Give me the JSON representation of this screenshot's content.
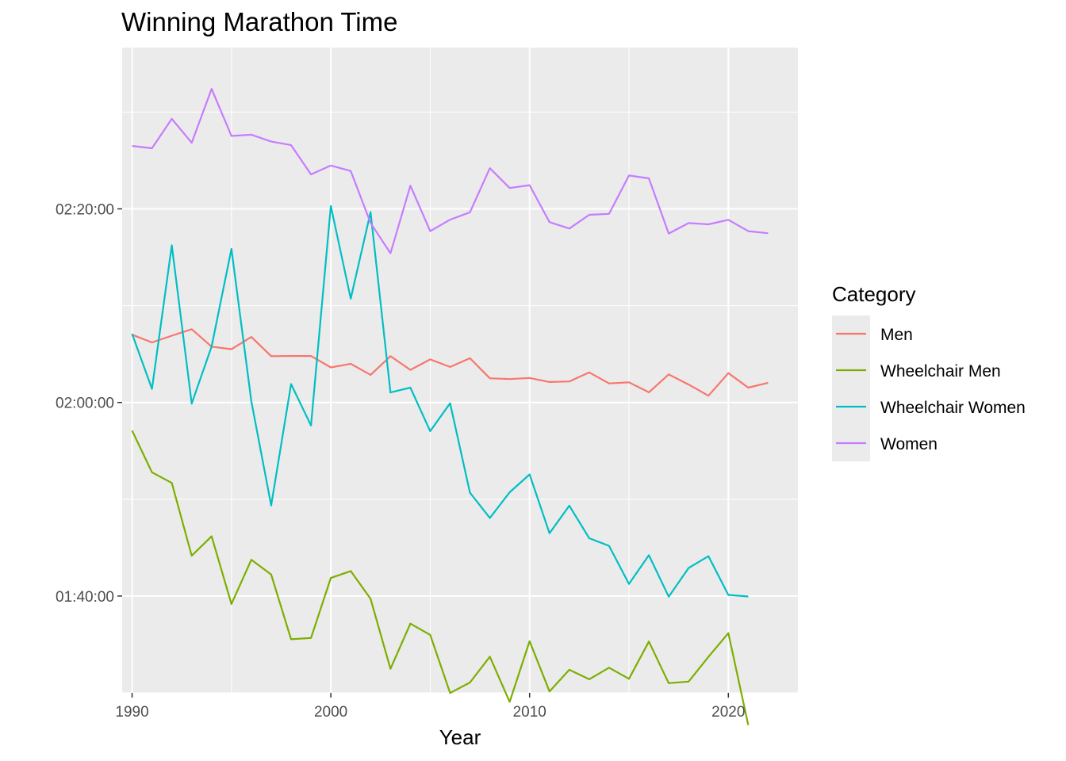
{
  "chart_data": {
    "type": "line",
    "title": "Winning Marathon Time",
    "xlabel": "Year",
    "ylabel": "",
    "xlim": [
      1989.5,
      2023.5
    ],
    "ylim_seconds": [
      5400,
      9400
    ],
    "grid": true,
    "legend": {
      "title": "Category",
      "placement": "right"
    },
    "x_ticks": [
      1990,
      2000,
      2010,
      2020
    ],
    "y_ticks": [
      {
        "seconds": 6000,
        "label": "01:40:00"
      },
      {
        "seconds": 7200,
        "label": "02:00:00"
      },
      {
        "seconds": 8400,
        "label": "02:20:00"
      }
    ],
    "y_minor_seconds": [
      5400,
      6600,
      7800,
      9000
    ],
    "series": [
      {
        "name": "Men",
        "color": "#F8766D",
        "points": [
          [
            1990,
            7620
          ],
          [
            1991,
            7572
          ],
          [
            1992,
            7614
          ],
          [
            1993,
            7654
          ],
          [
            1994,
            7546
          ],
          [
            1995,
            7530
          ],
          [
            1996,
            7606
          ],
          [
            1997,
            7487
          ],
          [
            1998,
            7488
          ],
          [
            1999,
            7488
          ],
          [
            2000,
            7417
          ],
          [
            2001,
            7440
          ],
          [
            2002,
            7371
          ],
          [
            2003,
            7487
          ],
          [
            2004,
            7402
          ],
          [
            2005,
            7467
          ],
          [
            2006,
            7420
          ],
          [
            2007,
            7474
          ],
          [
            2008,
            7350
          ],
          [
            2009,
            7345
          ],
          [
            2010,
            7352
          ],
          [
            2011,
            7327
          ],
          [
            2012,
            7330
          ],
          [
            2013,
            7386
          ],
          [
            2014,
            7318
          ],
          [
            2015,
            7325
          ],
          [
            2016,
            7263
          ],
          [
            2017,
            7374
          ],
          [
            2018,
            7311
          ],
          [
            2019,
            7242
          ],
          [
            2020,
            7382
          ],
          [
            2021,
            7292
          ],
          [
            2022,
            7322
          ]
        ]
      },
      {
        "name": "Wheelchair Men",
        "color": "#7CAE00",
        "points": [
          [
            1990,
            7026
          ],
          [
            1991,
            6767
          ],
          [
            1992,
            6701
          ],
          [
            1993,
            6250
          ],
          [
            1994,
            6370
          ],
          [
            1995,
            5951
          ],
          [
            1996,
            6225
          ],
          [
            1997,
            6133
          ],
          [
            1998,
            5732
          ],
          [
            1999,
            5740
          ],
          [
            2000,
            6112
          ],
          [
            2001,
            6155
          ],
          [
            2002,
            5983
          ],
          [
            2003,
            5549
          ],
          [
            2004,
            5829
          ],
          [
            2005,
            5759
          ],
          [
            2006,
            5399
          ],
          [
            2007,
            5464
          ],
          [
            2008,
            5624
          ],
          [
            2009,
            5344
          ],
          [
            2010,
            5720
          ],
          [
            2011,
            5409
          ],
          [
            2012,
            5543
          ],
          [
            2013,
            5484
          ],
          [
            2014,
            5556
          ],
          [
            2015,
            5487
          ],
          [
            2016,
            5718
          ],
          [
            2017,
            5460
          ],
          [
            2018,
            5470
          ],
          [
            2019,
            5623
          ],
          [
            2020,
            5770
          ],
          [
            2021,
            5200
          ]
        ]
      },
      {
        "name": "Wheelchair Women",
        "color": "#00BFC4",
        "points": [
          [
            1990,
            7626
          ],
          [
            1991,
            7284
          ],
          [
            1992,
            8174
          ],
          [
            1993,
            7193
          ],
          [
            1994,
            7547
          ],
          [
            1995,
            8152
          ],
          [
            1996,
            7207
          ],
          [
            1997,
            6561
          ],
          [
            1998,
            7314
          ],
          [
            1999,
            7057
          ],
          [
            2000,
            8418
          ],
          [
            2001,
            7843
          ],
          [
            2002,
            8380
          ],
          [
            2003,
            7262
          ],
          [
            2004,
            7292
          ],
          [
            2005,
            7022
          ],
          [
            2006,
            7195
          ],
          [
            2007,
            6641
          ],
          [
            2008,
            6484
          ],
          [
            2009,
            6643
          ],
          [
            2010,
            6754
          ],
          [
            2011,
            6389
          ],
          [
            2012,
            6560
          ],
          [
            2013,
            6358
          ],
          [
            2014,
            6311
          ],
          [
            2015,
            6075
          ],
          [
            2016,
            6253
          ],
          [
            2017,
            5996
          ],
          [
            2018,
            6174
          ],
          [
            2019,
            6247
          ],
          [
            2020,
            6007
          ],
          [
            2021,
            5997
          ]
        ]
      },
      {
        "name": "Women",
        "color": "#C77CFF",
        "points": [
          [
            1990,
            8790
          ],
          [
            1991,
            8776
          ],
          [
            1992,
            8958
          ],
          [
            1993,
            8810
          ],
          [
            1994,
            9144
          ],
          [
            1995,
            8852
          ],
          [
            1996,
            8860
          ],
          [
            1997,
            8817
          ],
          [
            1998,
            8795
          ],
          [
            1999,
            8614
          ],
          [
            2000,
            8669
          ],
          [
            2001,
            8635
          ],
          [
            2002,
            8313
          ],
          [
            2003,
            8125
          ],
          [
            2004,
            8544
          ],
          [
            2005,
            8262
          ],
          [
            2006,
            8333
          ],
          [
            2007,
            8379
          ],
          [
            2008,
            8652
          ],
          [
            2009,
            8529
          ],
          [
            2010,
            8547
          ],
          [
            2011,
            8318
          ],
          [
            2012,
            8278
          ],
          [
            2013,
            8363
          ],
          [
            2014,
            8369
          ],
          [
            2015,
            8607
          ],
          [
            2016,
            8589
          ],
          [
            2017,
            8247
          ],
          [
            2018,
            8312
          ],
          [
            2019,
            8304
          ],
          [
            2020,
            8332
          ],
          [
            2021,
            8262
          ],
          [
            2022,
            8249
          ]
        ]
      }
    ]
  }
}
